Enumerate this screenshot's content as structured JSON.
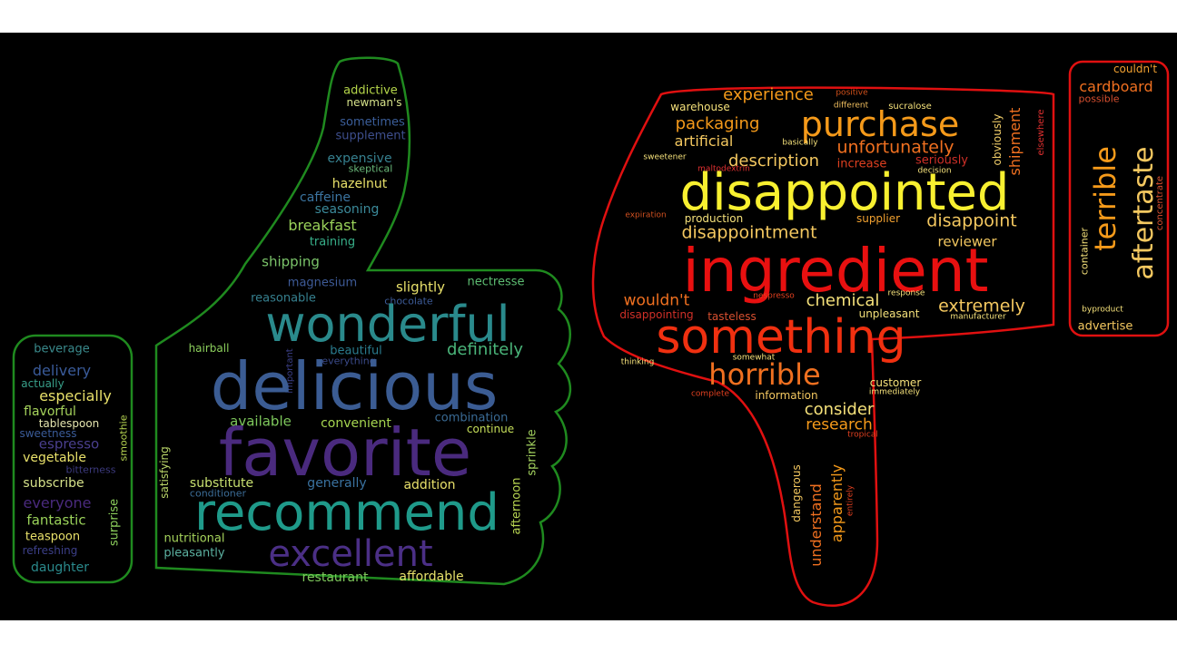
{
  "colors": {
    "background": "#000000",
    "thumbs_up_outline": "#1f8a1f",
    "thumbs_down_outline": "#e01010"
  },
  "positive_words": [
    {
      "text": "addictive",
      "color": "#b5d64a"
    },
    {
      "text": "newman's",
      "color": "#d6e28a"
    },
    {
      "text": "sometimes",
      "color": "#3b5e9a"
    },
    {
      "text": "supplement",
      "color": "#3e4f8e"
    },
    {
      "text": "expensive",
      "color": "#36808f"
    },
    {
      "text": "skeptical",
      "color": "#6ab87a"
    },
    {
      "text": "hazelnut",
      "color": "#e8e06a"
    },
    {
      "text": "caffeine",
      "color": "#3b74a0"
    },
    {
      "text": "seasoning",
      "color": "#3b8a9a"
    },
    {
      "text": "breakfast",
      "color": "#9ad25a"
    },
    {
      "text": "training",
      "color": "#38b08a"
    },
    {
      "text": "shipping",
      "color": "#7bc46a"
    },
    {
      "text": "magnesium",
      "color": "#3e5b98"
    },
    {
      "text": "slightly",
      "color": "#e8e06a"
    },
    {
      "text": "nectresse",
      "color": "#5dbd72"
    },
    {
      "text": "reasonable",
      "color": "#36808f"
    },
    {
      "text": "chocolate",
      "color": "#3c5a96"
    },
    {
      "text": "wonderful",
      "color": "#2a8a8c"
    },
    {
      "text": "hairball",
      "color": "#8ccf5c"
    },
    {
      "text": "important",
      "color": "#3b3f87"
    },
    {
      "text": "beautiful",
      "color": "#2a7c8e"
    },
    {
      "text": "everything",
      "color": "#3a4a8a"
    },
    {
      "text": "definitely",
      "color": "#4ab57a"
    },
    {
      "text": "delicious",
      "color": "#3b5c93"
    },
    {
      "text": "available",
      "color": "#7ec85c"
    },
    {
      "text": "convenient",
      "color": "#a6d650"
    },
    {
      "text": "combination",
      "color": "#3a6b95"
    },
    {
      "text": "continue",
      "color": "#c6df5a"
    },
    {
      "text": "favorite",
      "color": "#4a2a7e"
    },
    {
      "text": "satisfying",
      "color": "#bcd86a"
    },
    {
      "text": "substitute",
      "color": "#c8e070"
    },
    {
      "text": "conditioner",
      "color": "#3b6c96"
    },
    {
      "text": "generally",
      "color": "#3a72a0"
    },
    {
      "text": "addition",
      "color": "#e8e06a"
    },
    {
      "text": "afternoon",
      "color": "#b8d652"
    },
    {
      "text": "sprinkle",
      "color": "#a2d05e"
    },
    {
      "text": "recommend",
      "color": "#1f9a8a"
    },
    {
      "text": "nutritional",
      "color": "#a6d45c"
    },
    {
      "text": "excellent",
      "color": "#4b2f86"
    },
    {
      "text": "pleasantly",
      "color": "#5bb0a0"
    },
    {
      "text": "restaurant",
      "color": "#7ec85c"
    },
    {
      "text": "affordable",
      "color": "#e6e06a"
    },
    {
      "text": "beverage",
      "color": "#3a8a8c"
    },
    {
      "text": "delivery",
      "color": "#3a5b9a"
    },
    {
      "text": "actually",
      "color": "#38a08a"
    },
    {
      "text": "especially",
      "color": "#e8e06a"
    },
    {
      "text": "flavorful",
      "color": "#a6d45c"
    },
    {
      "text": "tablespoon",
      "color": "#e6e6b0"
    },
    {
      "text": "sweetness",
      "color": "#3a5b98"
    },
    {
      "text": "smoothie",
      "color": "#b8d652"
    },
    {
      "text": "espresso",
      "color": "#4a3f8e"
    },
    {
      "text": "bitterness",
      "color": "#3c3a7e"
    },
    {
      "text": "vegetable",
      "color": "#e8e06a"
    },
    {
      "text": "subscribe",
      "color": "#d6e28a"
    },
    {
      "text": "surprise",
      "color": "#8ccf5c"
    },
    {
      "text": "everyone",
      "color": "#4a2a7e"
    },
    {
      "text": "fantastic",
      "color": "#9ad25a"
    },
    {
      "text": "teaspoon",
      "color": "#e8e06a"
    },
    {
      "text": "refreshing",
      "color": "#3c3f88"
    },
    {
      "text": "daughter",
      "color": "#2a8a8c"
    }
  ],
  "negative_words": [
    {
      "text": "experience",
      "color": "#f59a1a"
    },
    {
      "text": "positive",
      "color": "#d0501a"
    },
    {
      "text": "warehouse",
      "color": "#f4e07a"
    },
    {
      "text": "different",
      "color": "#f2c060"
    },
    {
      "text": "sucralose",
      "color": "#f4e07a"
    },
    {
      "text": "purchase",
      "color": "#f59a1a"
    },
    {
      "text": "obviously",
      "color": "#f4d06a"
    },
    {
      "text": "shipment",
      "color": "#f07020"
    },
    {
      "text": "elsewhere",
      "color": "#e03030"
    },
    {
      "text": "packaging",
      "color": "#f59a1a"
    },
    {
      "text": "artificial",
      "color": "#f4c860"
    },
    {
      "text": "basically",
      "color": "#f4e07a"
    },
    {
      "text": "unfortunately",
      "color": "#f07020"
    },
    {
      "text": "sweetener",
      "color": "#f4e07a"
    },
    {
      "text": "description",
      "color": "#f4c860"
    },
    {
      "text": "increase",
      "color": "#e04020"
    },
    {
      "text": "seriously",
      "color": "#d03028"
    },
    {
      "text": "maltodextrin",
      "color": "#e03030"
    },
    {
      "text": "decision",
      "color": "#f4e07a"
    },
    {
      "text": "disappointed",
      "color": "#f8f030"
    },
    {
      "text": "expiration",
      "color": "#d05020"
    },
    {
      "text": "production",
      "color": "#f4e07a"
    },
    {
      "text": "supplier",
      "color": "#f0a030"
    },
    {
      "text": "disappoint",
      "color": "#f4c860"
    },
    {
      "text": "disappointment",
      "color": "#f4c860"
    },
    {
      "text": "reviewer",
      "color": "#f4c860"
    },
    {
      "text": "ingredient",
      "color": "#e81010"
    },
    {
      "text": "wouldn't",
      "color": "#f07020"
    },
    {
      "text": "nespresso",
      "color": "#e04020"
    },
    {
      "text": "chemical",
      "color": "#f4e07a"
    },
    {
      "text": "response",
      "color": "#f4e07a"
    },
    {
      "text": "extremely",
      "color": "#f4c860"
    },
    {
      "text": "disappointing",
      "color": "#d03028"
    },
    {
      "text": "tasteless",
      "color": "#d85030"
    },
    {
      "text": "unpleasant",
      "color": "#f4e07a"
    },
    {
      "text": "manufacturer",
      "color": "#f4e07a"
    },
    {
      "text": "something",
      "color": "#f03010"
    },
    {
      "text": "thinking",
      "color": "#f4e07a"
    },
    {
      "text": "somewhat",
      "color": "#f4e07a"
    },
    {
      "text": "horrible",
      "color": "#f07020"
    },
    {
      "text": "customer",
      "color": "#f4e07a"
    },
    {
      "text": "complete",
      "color": "#e04020"
    },
    {
      "text": "information",
      "color": "#f4c860"
    },
    {
      "text": "immediately",
      "color": "#f4e07a"
    },
    {
      "text": "consider",
      "color": "#f4e07a"
    },
    {
      "text": "research",
      "color": "#f59a1a"
    },
    {
      "text": "tropical",
      "color": "#e04020"
    },
    {
      "text": "dangerous",
      "color": "#f4c860"
    },
    {
      "text": "understand",
      "color": "#f07020"
    },
    {
      "text": "apparently",
      "color": "#f59a1a"
    },
    {
      "text": "entirely",
      "color": "#e04020"
    },
    {
      "text": "couldn't",
      "color": "#f0a030"
    },
    {
      "text": "cardboard",
      "color": "#f07020"
    },
    {
      "text": "possible",
      "color": "#d85030"
    },
    {
      "text": "terrible",
      "color": "#f59a1a"
    },
    {
      "text": "aftertaste",
      "color": "#f4c860"
    },
    {
      "text": "concentrate",
      "color": "#d85030"
    },
    {
      "text": "container",
      "color": "#f4e07a"
    },
    {
      "text": "byproduct",
      "color": "#f4e07a"
    },
    {
      "text": "advertise",
      "color": "#f4c860"
    }
  ]
}
